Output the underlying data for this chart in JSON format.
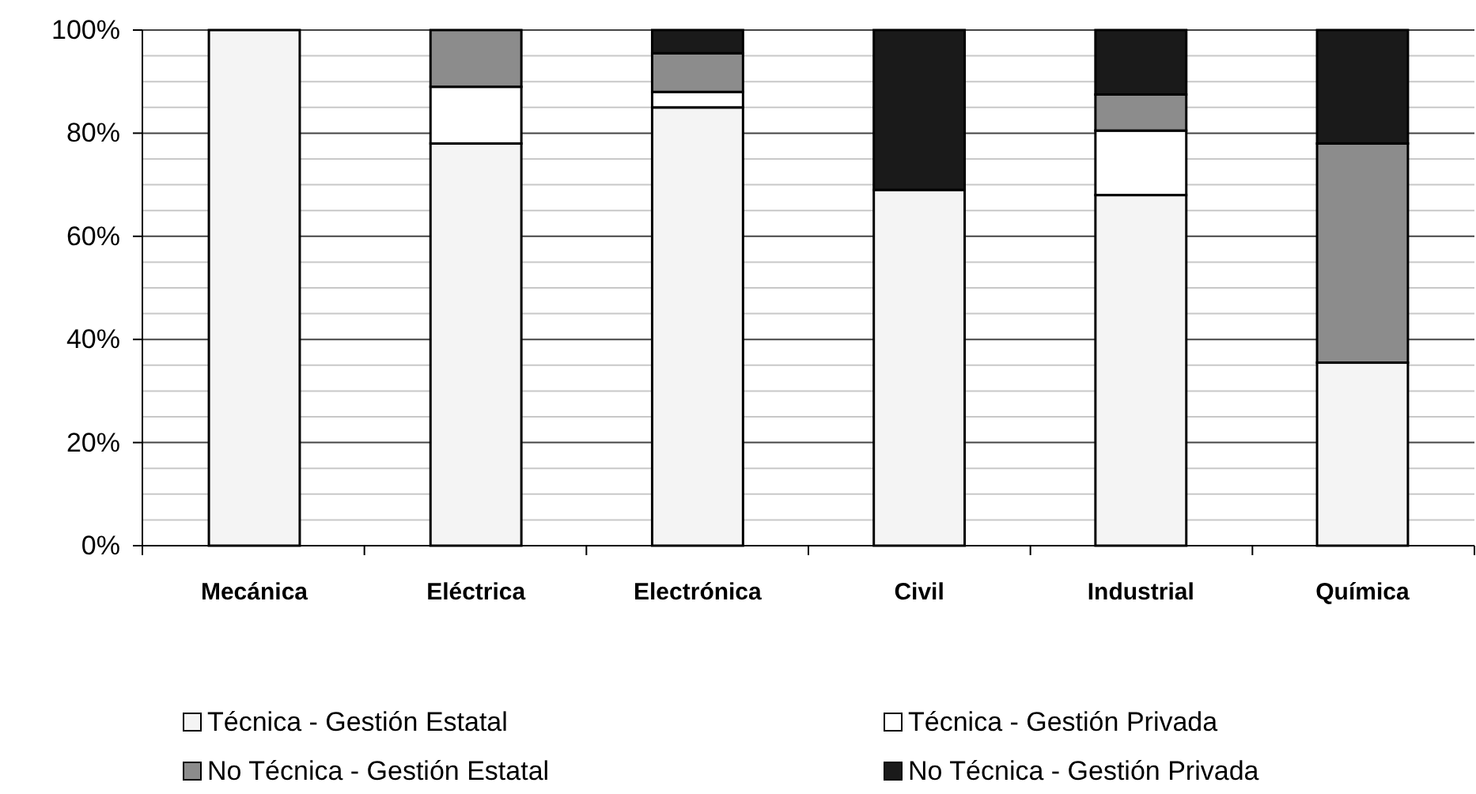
{
  "chart_data": {
    "type": "bar",
    "stacked": true,
    "categories": [
      "Mecánica",
      "Eléctrica",
      "Electrónica",
      "Civil",
      "Industrial",
      "Química"
    ],
    "series": [
      {
        "name": "Técnica - Gestión Estatal",
        "color": "#f4f4f4",
        "values": [
          100,
          78,
          85,
          69,
          68,
          35.5
        ]
      },
      {
        "name": "Técnica - Gestión Privada",
        "color": "#ffffff",
        "values": [
          0,
          11,
          3,
          0,
          12.5,
          0
        ]
      },
      {
        "name": "No Técnica - Gestión Estatal",
        "color": "#8c8c8c",
        "values": [
          0,
          11,
          7.5,
          0,
          7,
          42.5
        ]
      },
      {
        "name": "No Técnica - Gestión Privada",
        "color": "#1a1a1a",
        "values": [
          0,
          0,
          4.5,
          31,
          12.5,
          22
        ]
      }
    ],
    "ylim": [
      0,
      100
    ],
    "yticks": [
      {
        "value": 0,
        "label": "0%"
      },
      {
        "value": 5,
        "label": null
      },
      {
        "value": 10,
        "label": null
      },
      {
        "value": 15,
        "label": null
      },
      {
        "value": 20,
        "label": "20%"
      },
      {
        "value": 25,
        "label": null
      },
      {
        "value": 30,
        "label": null
      },
      {
        "value": 35,
        "label": null
      },
      {
        "value": 40,
        "label": "40%"
      },
      {
        "value": 45,
        "label": null
      },
      {
        "value": 50,
        "label": null
      },
      {
        "value": 55,
        "label": null
      },
      {
        "value": 60,
        "label": "60%"
      },
      {
        "value": 65,
        "label": null
      },
      {
        "value": 70,
        "label": null
      },
      {
        "value": 75,
        "label": null
      },
      {
        "value": 80,
        "label": "80%"
      },
      {
        "value": 85,
        "label": null
      },
      {
        "value": 90,
        "label": null
      },
      {
        "value": 95,
        "label": null
      },
      {
        "value": 100,
        "label": "100%"
      }
    ],
    "grid": "y",
    "legend": "bottom"
  }
}
